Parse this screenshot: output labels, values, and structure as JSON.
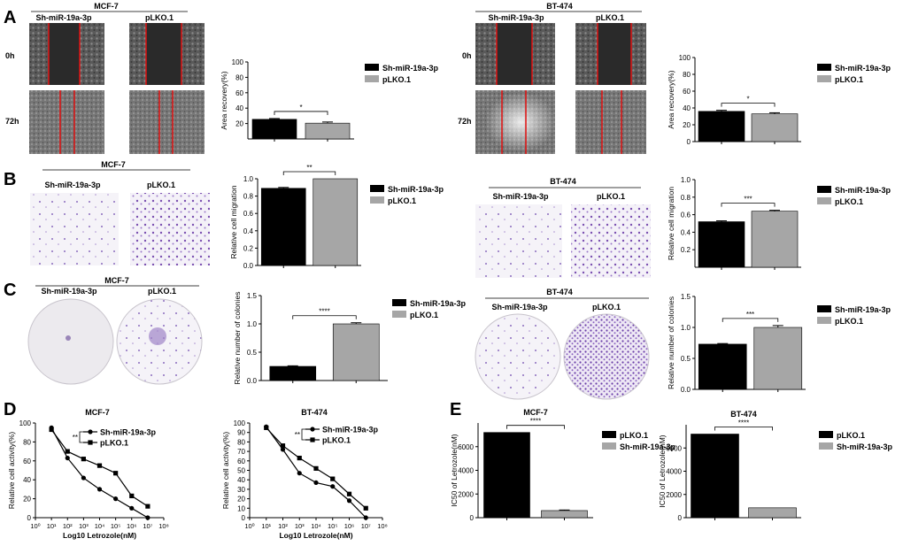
{
  "colors": {
    "black": "#000000",
    "gray": "#a6a6a6",
    "cut": "#e01010",
    "stain": "#7a4fb0"
  },
  "panel_letters": [
    "A",
    "B",
    "C",
    "D",
    "E"
  ],
  "row_labels": {
    "t0": "0h",
    "t72": "72h"
  },
  "groups": {
    "sh": "Sh-miR-19a-3p",
    "ctrl": "pLKO.1"
  },
  "cells": {
    "mcf7": "MCF-7",
    "bt474": "BT-474"
  },
  "chart_data": [
    {
      "id": "A_mcf7",
      "type": "bar",
      "categories": [
        "Sh-miR-19a-3p",
        "pLKO.1"
      ],
      "values": [
        25.5,
        20.5
      ],
      "errors": [
        1.0,
        1.5
      ],
      "ylabel": "Area recovery(%)",
      "ylim": [
        0,
        100
      ],
      "ticks": [
        20,
        40,
        60,
        80,
        100
      ],
      "significance": "*",
      "legend": [
        "Sh-miR-19a-3p",
        "pLKO.1"
      ]
    },
    {
      "id": "A_bt474",
      "type": "bar",
      "categories": [
        "Sh-miR-19a-3p",
        "pLKO.1"
      ],
      "values": [
        36,
        33
      ],
      "errors": [
        1.2,
        1.3
      ],
      "ylabel": "Area recovery(%)",
      "ylim": [
        0,
        100
      ],
      "ticks": [
        0,
        20,
        40,
        60,
        80,
        100
      ],
      "significance": "*",
      "legend": [
        "Sh-miR-19a-3p",
        "pLKO.1"
      ]
    },
    {
      "id": "B_mcf7",
      "type": "bar",
      "categories": [
        "Sh-miR-19a-3p",
        "pLKO.1"
      ],
      "values": [
        0.89,
        1.0
      ],
      "errors": [
        0.01,
        0
      ],
      "ylabel": "Relative cell migration",
      "ylim": [
        0,
        1.0
      ],
      "ticks": [
        "0.0",
        "0.2",
        "0.4",
        "0.6",
        "0.8",
        "1.0"
      ],
      "significance": "**",
      "legend": [
        "Sh-miR-19a-3p",
        "pLKO.1"
      ]
    },
    {
      "id": "B_bt474",
      "type": "bar",
      "categories": [
        "Sh-miR-19a-3p",
        "pLKO.1"
      ],
      "values": [
        0.52,
        0.64
      ],
      "errors": [
        0.01,
        0.01
      ],
      "ylabel": "Relative cell migration",
      "ylim": [
        0,
        1.0
      ],
      "ticks": [
        "0.2",
        "0.4",
        "0.6",
        "0.8",
        "1.0"
      ],
      "significance": "***",
      "legend": [
        "Sh-miR-19a-3p",
        "pLKO.1"
      ]
    },
    {
      "id": "C_mcf7",
      "type": "bar",
      "categories": [
        "Sh-miR-19a-3p",
        "pLKO.1"
      ],
      "values": [
        0.25,
        1.0
      ],
      "errors": [
        0.01,
        0.02
      ],
      "ylabel": "Relative number of colonies",
      "ylim": [
        0,
        1.5
      ],
      "ticks": [
        "0.0",
        "0.5",
        "1.0",
        "1.5"
      ],
      "significance": "****",
      "legend": [
        "Sh-miR-19a-3p",
        "pLKO.1"
      ]
    },
    {
      "id": "C_bt474",
      "type": "bar",
      "categories": [
        "Sh-miR-19a-3p",
        "pLKO.1"
      ],
      "values": [
        0.73,
        1.0
      ],
      "errors": [
        0.01,
        0.03
      ],
      "ylabel": "Relative number of colonies",
      "ylim": [
        0,
        1.5
      ],
      "ticks": [
        "0.0",
        "0.5",
        "1.0",
        "1.5"
      ],
      "significance": "***",
      "legend": [
        "Sh-miR-19a-3p",
        "pLKO.1"
      ]
    },
    {
      "id": "D_mcf7",
      "type": "line",
      "title": "MCF-7",
      "xlabel": "Log10 Letrozole(nM)",
      "ylabel": "Relative cell activity(%)",
      "x": [
        1,
        2,
        3,
        4,
        5,
        6,
        7
      ],
      "xlim": [
        0,
        8
      ],
      "ylim": [
        0,
        100
      ],
      "yticks": [
        0,
        20,
        40,
        60,
        80,
        100
      ],
      "xticks": [
        "10⁰",
        "10¹",
        "10²",
        "10³",
        "10⁴",
        "10⁵",
        "10⁶",
        "10⁷",
        "10⁸"
      ],
      "series": [
        {
          "name": "Sh-miR-19a-3p",
          "values": [
            95,
            63,
            42,
            30,
            20,
            10,
            0
          ]
        },
        {
          "name": "pLKO.1",
          "values": [
            93,
            70,
            62,
            55,
            47,
            23,
            12
          ]
        }
      ],
      "significance": "**"
    },
    {
      "id": "D_bt474",
      "type": "line",
      "title": "BT-474",
      "xlabel": "Log10 Letrozole(nM)",
      "ylabel": "Relative cell activity(%)",
      "x": [
        1,
        2,
        3,
        4,
        5,
        6,
        7
      ],
      "xlim": [
        0,
        8
      ],
      "ylim": [
        0,
        100
      ],
      "yticks": [
        0,
        10,
        20,
        30,
        40,
        50,
        60,
        70,
        80,
        90,
        100
      ],
      "xticks": [
        "10⁰",
        "10¹",
        "10²",
        "10³",
        "10⁴",
        "10⁵",
        "10⁶",
        "10⁷",
        "10⁸"
      ],
      "series": [
        {
          "name": "Sh-miR-19a-3p",
          "values": [
            96,
            72,
            47,
            37,
            33,
            18,
            0
          ]
        },
        {
          "name": "pLKO.1",
          "values": [
            95,
            76,
            63,
            52,
            41,
            25,
            10
          ]
        }
      ],
      "significance": "**"
    },
    {
      "id": "E_mcf7",
      "type": "bar",
      "title": "MCF-7",
      "categories": [
        "pLKO.1",
        "Sh-miR-19a-3p"
      ],
      "values": [
        7200,
        600
      ],
      "errors": [
        0,
        50
      ],
      "ylabel": "IC50 of Letrozole(nM)",
      "ylim": [
        0,
        8000
      ],
      "ticks": [
        0,
        2000,
        4000,
        6000
      ],
      "significance": "****",
      "legend": [
        "pLKO.1",
        "Sh-miR-19a-3p"
      ]
    },
    {
      "id": "E_bt474",
      "type": "bar",
      "title": "BT-474",
      "categories": [
        "pLKO.1",
        "Sh-miR-19a-3p"
      ],
      "values": [
        7200,
        850
      ],
      "errors": [
        0,
        0
      ],
      "ylabel": "IC50 of Letrozole(nM)",
      "ylim": [
        0,
        8000
      ],
      "ticks": [
        0,
        2000,
        4000,
        6000
      ],
      "significance": "****",
      "legend": [
        "pLKO.1",
        "Sh-miR-19a-3p"
      ]
    }
  ]
}
